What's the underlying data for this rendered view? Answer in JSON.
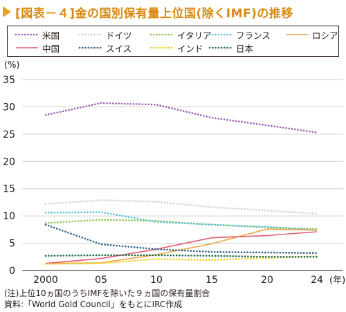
{
  "title": "[図表－４]金の国別保有量上位国(除くIMF)の推移",
  "unit_label": "(%)",
  "x_unit_label": "(年)",
  "footnotes": [
    "(注)上位10ヵ国のうちIMFを除いた９ヵ国の保有量割合",
    "資料:「World Gold Council」をもとにIRC作成"
  ],
  "chart_data": {
    "type": "line",
    "title": "[図表－４]金の国別保有量上位国(除くIMF)の推移",
    "xlabel": "(年)",
    "ylabel": "(%)",
    "x": [
      2000,
      2005,
      2010,
      2015,
      2020,
      2024
    ],
    "xtick_labels": [
      "2000",
      "05",
      "10",
      "15",
      "20",
      "24"
    ],
    "ylim": [
      0,
      35
    ],
    "yticks": [
      0,
      5,
      10,
      15,
      20,
      25,
      30,
      35
    ],
    "grid": "y",
    "legend_position": "top",
    "series": [
      {
        "name": "米国",
        "color": "#9b59b6",
        "style": "dotted",
        "values": [
          28.5,
          30.7,
          30.4,
          28.0,
          26.6,
          25.3
        ]
      },
      {
        "name": "ドイツ",
        "color": "#cfcfcf",
        "style": "dotted",
        "values": [
          12.2,
          12.9,
          12.6,
          11.6,
          11.0,
          10.4
        ]
      },
      {
        "name": "イタリア",
        "color": "#8cc152",
        "style": "dotted",
        "values": [
          8.7,
          9.3,
          9.1,
          8.4,
          7.9,
          7.6
        ]
      },
      {
        "name": "フランス",
        "color": "#5bc0de",
        "style": "dotted",
        "values": [
          10.6,
          10.7,
          8.9,
          8.4,
          8.0,
          7.4
        ]
      },
      {
        "name": "ロシア",
        "color": "#e8a33d",
        "style": "solid",
        "values": [
          1.3,
          1.4,
          2.9,
          4.9,
          7.6,
          7.4
        ]
      },
      {
        "name": "中国",
        "color": "#e05a6e",
        "style": "solid",
        "values": [
          1.3,
          2.2,
          3.9,
          6.0,
          6.4,
          7.1
        ]
      },
      {
        "name": "スイス",
        "color": "#2c5f8a",
        "style": "dotted",
        "values": [
          8.4,
          4.8,
          3.9,
          3.4,
          3.3,
          3.2
        ]
      },
      {
        "name": "インド",
        "color": "#f0d020",
        "style": "dotted",
        "values": [
          1.2,
          1.3,
          2.1,
          1.9,
          2.3,
          2.6
        ]
      },
      {
        "name": "日本",
        "color": "#1e6b45",
        "style": "dotted",
        "values": [
          2.7,
          2.8,
          2.8,
          2.7,
          2.5,
          2.5
        ]
      }
    ]
  }
}
